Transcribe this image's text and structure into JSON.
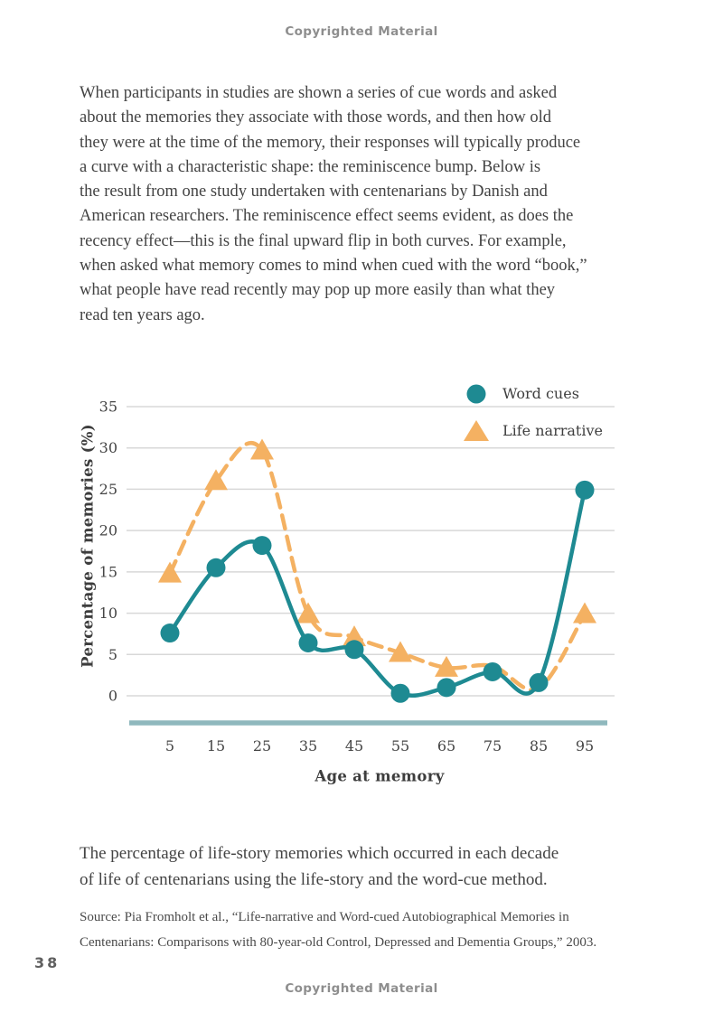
{
  "page": {
    "header_notice": "Copyrighted Material",
    "footer_notice": "Copyrighted Material",
    "page_number": "38"
  },
  "paragraph": {
    "lines": [
      "When participants in studies are shown a series of cue words and asked",
      "about the memories they associate with those words, and then how old",
      "they were at the time of the memory, their responses will typically produce",
      "a curve with a characteristic shape: the reminiscence bump. Below is",
      "the result from one study undertaken with centenarians by Danish and",
      "American researchers. The reminiscence effect seems evident, as does the",
      "recency effect—this is the final upward flip in both curves. For example,",
      "when asked what memory comes to mind when cued with the word “book,”",
      "what people have read recently may pop up more easily than what they",
      "read ten years ago."
    ]
  },
  "caption": {
    "lines": [
      "The percentage of life-story memories which occurred in each decade",
      "of life of centenarians using the life-story and the word-cue method."
    ]
  },
  "source": {
    "lines": [
      "Source: Pia Fromholt et al., “Life-narrative and Word-cued Autobiographical Memories in",
      "Centenarians: Comparisons with 80-year-old Control, Depressed and Dementia Groups,” 2003."
    ]
  },
  "chart_data": {
    "type": "line",
    "x": [
      5,
      15,
      25,
      35,
      45,
      55,
      65,
      75,
      85,
      95
    ],
    "xlabel": "Age at memory",
    "ylabel": "Percentage of memories (%)",
    "ylim": [
      0,
      35
    ],
    "ytick_step": 5,
    "grid": true,
    "legend_position": "top-right",
    "series": [
      {
        "name": "Life narrative",
        "marker": "triangle",
        "line_style": "dashed",
        "color": "#F4B162",
        "values": [
          14.8,
          26.0,
          29.7,
          9.9,
          7.1,
          5.2,
          3.4,
          3.6,
          0.9,
          9.9
        ],
        "markers_hidden_at_x": [
          75,
          85
        ]
      },
      {
        "name": "Word cues",
        "marker": "circle",
        "line_style": "solid",
        "color": "#1E8A92",
        "values": [
          7.6,
          15.5,
          18.2,
          6.4,
          5.6,
          0.3,
          1.0,
          2.9,
          1.6,
          24.9
        ],
        "markers_hidden_at_x": []
      }
    ],
    "colors": {
      "grid": "#d8d8d8",
      "axis_baseline": "#8FB8BD",
      "tick_text": "#454545"
    }
  }
}
